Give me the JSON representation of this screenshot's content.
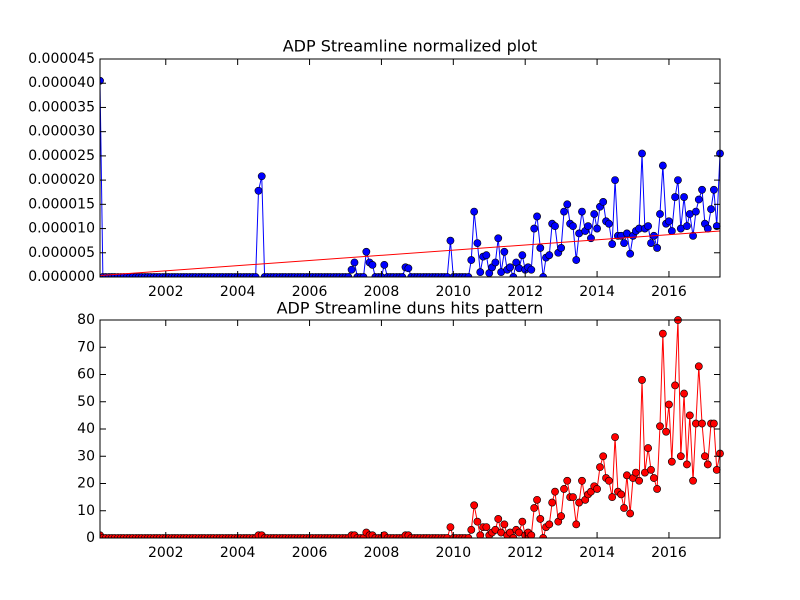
{
  "chart_data": [
    {
      "type": "line",
      "title": "ADP Streamline normalized plot",
      "xlim": [
        2000.17,
        2017.42
      ],
      "xticks": [
        2002,
        2004,
        2006,
        2008,
        2010,
        2012,
        2014,
        2016
      ],
      "ylim": [
        0,
        4.5e-05
      ],
      "yticks": [
        {
          "value": 0,
          "label": "0.000000"
        },
        {
          "value": 5e-06,
          "label": "0.000005"
        },
        {
          "value": 1e-05,
          "label": "0.000010"
        },
        {
          "value": 1.5e-05,
          "label": "0.000015"
        },
        {
          "value": 2e-05,
          "label": "0.000020"
        },
        {
          "value": 2.5e-05,
          "label": "0.000025"
        },
        {
          "value": 3e-05,
          "label": "0.000030"
        },
        {
          "value": 3.5e-05,
          "label": "0.000035"
        },
        {
          "value": 4e-05,
          "label": "0.000040"
        },
        {
          "value": 4.5e-05,
          "label": "0.000045"
        }
      ],
      "trend": {
        "color": "#ff0000",
        "x": [
          2000.17,
          2017.42
        ],
        "values": [
          3e-07,
          9.5e-06
        ]
      },
      "series": [
        {
          "color": "#0000ff",
          "x": [
            2000.17,
            2000.25,
            2000.33,
            2000.42,
            2000.5,
            2000.58,
            2000.67,
            2000.75,
            2000.83,
            2000.92,
            2001,
            2001.08,
            2001.17,
            2001.25,
            2001.33,
            2001.42,
            2001.5,
            2001.58,
            2001.67,
            2001.75,
            2001.83,
            2001.92,
            2002,
            2002.08,
            2002.17,
            2002.25,
            2002.33,
            2002.42,
            2002.5,
            2002.58,
            2002.67,
            2002.75,
            2002.83,
            2002.92,
            2003,
            2003.08,
            2003.17,
            2003.25,
            2003.33,
            2003.42,
            2003.5,
            2003.58,
            2003.67,
            2003.75,
            2003.83,
            2003.92,
            2004,
            2004.08,
            2004.17,
            2004.25,
            2004.33,
            2004.42,
            2004.5,
            2004.58,
            2004.67,
            2004.75,
            2004.83,
            2004.92,
            2005,
            2005.08,
            2005.17,
            2005.25,
            2005.33,
            2005.42,
            2005.5,
            2005.58,
            2005.67,
            2005.75,
            2005.83,
            2005.92,
            2006,
            2006.08,
            2006.17,
            2006.25,
            2006.33,
            2006.42,
            2006.5,
            2006.58,
            2006.67,
            2006.75,
            2006.83,
            2006.92,
            2007,
            2007.08,
            2007.17,
            2007.25,
            2007.33,
            2007.42,
            2007.5,
            2007.58,
            2007.67,
            2007.75,
            2007.83,
            2007.92,
            2008,
            2008.08,
            2008.17,
            2008.25,
            2008.33,
            2008.42,
            2008.5,
            2008.58,
            2008.67,
            2008.75,
            2008.83,
            2008.92,
            2009,
            2009.08,
            2009.17,
            2009.25,
            2009.33,
            2009.42,
            2009.5,
            2009.58,
            2009.67,
            2009.75,
            2009.83,
            2009.92,
            2010,
            2010.08,
            2010.17,
            2010.25,
            2010.33,
            2010.42,
            2010.5,
            2010.58,
            2010.67,
            2010.75,
            2010.83,
            2010.92,
            2011,
            2011.08,
            2011.17,
            2011.25,
            2011.33,
            2011.42,
            2011.5,
            2011.58,
            2011.67,
            2011.75,
            2011.83,
            2011.92,
            2012,
            2012.08,
            2012.17,
            2012.25,
            2012.33,
            2012.42,
            2012.5,
            2012.58,
            2012.67,
            2012.75,
            2012.83,
            2012.92,
            2013,
            2013.08,
            2013.17,
            2013.25,
            2013.33,
            2013.42,
            2013.5,
            2013.58,
            2013.67,
            2013.75,
            2013.83,
            2013.92,
            2014,
            2014.08,
            2014.17,
            2014.25,
            2014.33,
            2014.42,
            2014.5,
            2014.58,
            2014.67,
            2014.75,
            2014.83,
            2014.92,
            2015,
            2015.08,
            2015.17,
            2015.25,
            2015.33,
            2015.42,
            2015.5,
            2015.58,
            2015.67,
            2015.75,
            2015.83,
            2015.92,
            2016,
            2016.08,
            2016.17,
            2016.25,
            2016.33,
            2016.42,
            2016.5,
            2016.58,
            2016.67,
            2016.75,
            2016.83,
            2016.92,
            2017,
            2017.08,
            2017.17,
            2017.25,
            2017.33,
            2017.42
          ],
          "values": [
            4.05e-05,
            0,
            0,
            0,
            0,
            0,
            0,
            0,
            0,
            0,
            0,
            0,
            0,
            0,
            0,
            0,
            0,
            0,
            0,
            0,
            0,
            0,
            0,
            0,
            0,
            0,
            0,
            0,
            0,
            0,
            0,
            0,
            0,
            0,
            0,
            0,
            0,
            0,
            0,
            0,
            0,
            0,
            0,
            0,
            0,
            0,
            0,
            0,
            0,
            0,
            0,
            0,
            0,
            1.78e-05,
            2.08e-05,
            0,
            0,
            0,
            0,
            0,
            0,
            0,
            0,
            0,
            0,
            0,
            0,
            0,
            0,
            0,
            0,
            0,
            0,
            0,
            0,
            0,
            0,
            0,
            0,
            0,
            0,
            0,
            0,
            0,
            1.5e-06,
            3e-06,
            0,
            0,
            0,
            5.2e-06,
            3e-06,
            2.5e-06,
            0,
            0,
            0,
            2.5e-06,
            0,
            0,
            0,
            0,
            0,
            0,
            2e-06,
            1.8e-06,
            0,
            0,
            0,
            0,
            0,
            0,
            0,
            0,
            0,
            0,
            0,
            0,
            0,
            7.5e-06,
            0,
            0,
            0,
            0,
            0,
            0,
            3.5e-06,
            1.35e-05,
            7e-06,
            1e-06,
            4.2e-06,
            4.5e-06,
            8e-07,
            2e-06,
            3e-06,
            8e-06,
            1e-06,
            5.2e-06,
            1.5e-06,
            2e-06,
            0,
            3e-06,
            1.8e-06,
            4.5e-06,
            1.5e-06,
            2e-06,
            1.5e-06,
            1e-05,
            1.25e-05,
            6e-06,
            0,
            4e-06,
            4.5e-06,
            1.1e-05,
            1.05e-05,
            5e-06,
            6e-06,
            1.35e-05,
            1.5e-05,
            1.1e-05,
            1.05e-05,
            3.5e-06,
            9e-06,
            1.35e-05,
            9.5e-06,
            1.05e-05,
            8e-06,
            1.3e-05,
            1e-05,
            1.45e-05,
            1.55e-05,
            1.15e-05,
            1.1e-05,
            6.8e-06,
            2e-05,
            8.5e-06,
            8.5e-06,
            7e-06,
            9e-06,
            4.8e-06,
            8.5e-06,
            9.5e-06,
            1e-05,
            2.55e-05,
            1e-05,
            1.05e-05,
            7e-06,
            8.5e-06,
            6e-06,
            1.3e-05,
            2.3e-05,
            1.1e-05,
            1.15e-05,
            9.5e-06,
            1.65e-05,
            2e-05,
            1e-05,
            1.65e-05,
            1.05e-05,
            1.3e-05,
            8.5e-06,
            1.35e-05,
            1.6e-05,
            1.8e-05,
            1.1e-05,
            1e-05,
            1.4e-05,
            1.8e-05,
            1.05e-05,
            2.55e-05
          ]
        }
      ]
    },
    {
      "type": "line",
      "title": "ADP Streamline duns hits pattern",
      "xlim": [
        2000.17,
        2017.42
      ],
      "xticks": [
        2002,
        2004,
        2006,
        2008,
        2010,
        2012,
        2014,
        2016
      ],
      "ylim": [
        0,
        80
      ],
      "yticks": [
        0,
        10,
        20,
        30,
        40,
        50,
        60,
        70,
        80
      ],
      "series": [
        {
          "color": "#ff0000",
          "x": [
            2000.17,
            2000.25,
            2000.33,
            2000.42,
            2000.5,
            2000.58,
            2000.67,
            2000.75,
            2000.83,
            2000.92,
            2001,
            2001.08,
            2001.17,
            2001.25,
            2001.33,
            2001.42,
            2001.5,
            2001.58,
            2001.67,
            2001.75,
            2001.83,
            2001.92,
            2002,
            2002.08,
            2002.17,
            2002.25,
            2002.33,
            2002.42,
            2002.5,
            2002.58,
            2002.67,
            2002.75,
            2002.83,
            2002.92,
            2003,
            2003.08,
            2003.17,
            2003.25,
            2003.33,
            2003.42,
            2003.5,
            2003.58,
            2003.67,
            2003.75,
            2003.83,
            2003.92,
            2004,
            2004.08,
            2004.17,
            2004.25,
            2004.33,
            2004.42,
            2004.5,
            2004.58,
            2004.67,
            2004.75,
            2004.83,
            2004.92,
            2005,
            2005.08,
            2005.17,
            2005.25,
            2005.33,
            2005.42,
            2005.5,
            2005.58,
            2005.67,
            2005.75,
            2005.83,
            2005.92,
            2006,
            2006.08,
            2006.17,
            2006.25,
            2006.33,
            2006.42,
            2006.5,
            2006.58,
            2006.67,
            2006.75,
            2006.83,
            2006.92,
            2007,
            2007.08,
            2007.17,
            2007.25,
            2007.33,
            2007.42,
            2007.5,
            2007.58,
            2007.67,
            2007.75,
            2007.83,
            2007.92,
            2008,
            2008.08,
            2008.17,
            2008.25,
            2008.33,
            2008.42,
            2008.5,
            2008.58,
            2008.67,
            2008.75,
            2008.83,
            2008.92,
            2009,
            2009.08,
            2009.17,
            2009.25,
            2009.33,
            2009.42,
            2009.5,
            2009.58,
            2009.67,
            2009.75,
            2009.83,
            2009.92,
            2010,
            2010.08,
            2010.17,
            2010.25,
            2010.33,
            2010.42,
            2010.5,
            2010.58,
            2010.67,
            2010.75,
            2010.83,
            2010.92,
            2011,
            2011.08,
            2011.17,
            2011.25,
            2011.33,
            2011.42,
            2011.5,
            2011.58,
            2011.67,
            2011.75,
            2011.83,
            2011.92,
            2012,
            2012.08,
            2012.17,
            2012.25,
            2012.33,
            2012.42,
            2012.5,
            2012.58,
            2012.67,
            2012.75,
            2012.83,
            2012.92,
            2013,
            2013.08,
            2013.17,
            2013.25,
            2013.33,
            2013.42,
            2013.5,
            2013.58,
            2013.67,
            2013.75,
            2013.83,
            2013.92,
            2014,
            2014.08,
            2014.17,
            2014.25,
            2014.33,
            2014.42,
            2014.5,
            2014.58,
            2014.67,
            2014.75,
            2014.83,
            2014.92,
            2015,
            2015.08,
            2015.17,
            2015.25,
            2015.33,
            2015.42,
            2015.5,
            2015.58,
            2015.67,
            2015.75,
            2015.83,
            2015.92,
            2016,
            2016.08,
            2016.17,
            2016.25,
            2016.33,
            2016.42,
            2016.5,
            2016.58,
            2016.67,
            2016.75,
            2016.83,
            2016.92,
            2017,
            2017.08,
            2017.17,
            2017.25,
            2017.33,
            2017.42
          ],
          "values": [
            1,
            0,
            0,
            0,
            0,
            0,
            0,
            0,
            0,
            0,
            0,
            0,
            0,
            0,
            0,
            0,
            0,
            0,
            0,
            0,
            0,
            0,
            0,
            0,
            0,
            0,
            0,
            0,
            0,
            0,
            0,
            0,
            0,
            0,
            0,
            0,
            0,
            0,
            0,
            0,
            0,
            0,
            0,
            0,
            0,
            0,
            0,
            0,
            0,
            0,
            0,
            0,
            0,
            1,
            1,
            0,
            0,
            0,
            0,
            0,
            0,
            0,
            0,
            0,
            0,
            0,
            0,
            0,
            0,
            0,
            0,
            0,
            0,
            0,
            0,
            0,
            0,
            0,
            0,
            0,
            0,
            0,
            0,
            0,
            1,
            1,
            0,
            0,
            0,
            2,
            1,
            1,
            0,
            0,
            0,
            1,
            0,
            0,
            0,
            0,
            0,
            0,
            1,
            1,
            0,
            0,
            0,
            0,
            0,
            0,
            0,
            0,
            0,
            0,
            0,
            0,
            0,
            4,
            0,
            0,
            0,
            0,
            0,
            0,
            3,
            12,
            6,
            1,
            4,
            4,
            1,
            2,
            3,
            7,
            2,
            5,
            1,
            2,
            0,
            3,
            2,
            6,
            1,
            2,
            1,
            11,
            14,
            7,
            0,
            4,
            5,
            13,
            17,
            6,
            8,
            18,
            21,
            15,
            15,
            5,
            13,
            21,
            14,
            16,
            17,
            19,
            18,
            26,
            30,
            22,
            21,
            15,
            37,
            17,
            16,
            11,
            23,
            9,
            22,
            24,
            21,
            58,
            24,
            33,
            25,
            22,
            18,
            41,
            75,
            39,
            49,
            28,
            56,
            80,
            30,
            53,
            27,
            45,
            21,
            42,
            63,
            42,
            30,
            27,
            42,
            42,
            25,
            31
          ]
        }
      ]
    }
  ]
}
